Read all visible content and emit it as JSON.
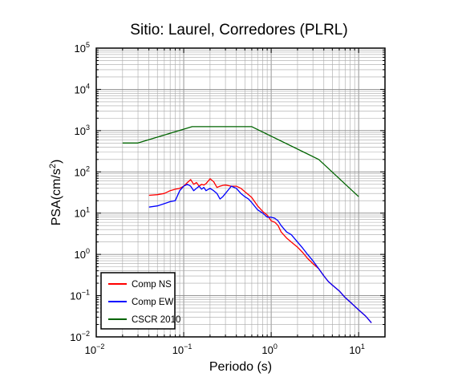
{
  "chart_data": {
    "type": "line",
    "title": "Sitio: Laurel, Corredores (PLRL)",
    "xlabel": "Periodo (s)",
    "ylabel": {
      "base": "PSA(cm/s",
      "sup": "2",
      "end": ")"
    },
    "x_scale": "log",
    "y_scale": "log",
    "xlim": [
      0.01,
      20
    ],
    "ylim": [
      0.01,
      100000
    ],
    "grid": true,
    "legend_position": "bottom-left",
    "x_ticks": [
      {
        "base": "10",
        "exp": "−2",
        "value": 0.01
      },
      {
        "base": "10",
        "exp": "−1",
        "value": 0.1
      },
      {
        "base": "10",
        "exp": "0",
        "value": 1
      },
      {
        "base": "10",
        "exp": "1",
        "value": 10
      }
    ],
    "y_ticks": [
      {
        "base": "10",
        "exp": "−2",
        "value": 0.01
      },
      {
        "base": "10",
        "exp": "−1",
        "value": 0.1
      },
      {
        "base": "10",
        "exp": "0",
        "value": 1
      },
      {
        "base": "10",
        "exp": "1",
        "value": 10
      },
      {
        "base": "10",
        "exp": "2",
        "value": 100
      },
      {
        "base": "10",
        "exp": "3",
        "value": 1000
      },
      {
        "base": "10",
        "exp": "4",
        "value": 10000
      },
      {
        "base": "10",
        "exp": "5",
        "value": 100000
      }
    ],
    "series": [
      {
        "name": "Comp NS",
        "color": "#ff0000",
        "x": [
          0.04,
          0.05,
          0.06,
          0.07,
          0.08,
          0.09,
          0.1,
          0.11,
          0.12,
          0.13,
          0.14,
          0.15,
          0.16,
          0.17,
          0.18,
          0.2,
          0.22,
          0.24,
          0.26,
          0.28,
          0.3,
          0.35,
          0.4,
          0.45,
          0.5,
          0.55,
          0.6,
          0.7,
          0.8,
          0.9,
          1.0,
          1.1,
          1.2,
          1.3,
          1.5,
          1.7,
          2.0,
          2.3,
          2.6,
          3.0,
          3.5,
          4.0,
          4.5,
          5.0,
          6.0,
          7.0,
          8.0,
          10.0,
          12.0,
          14.0
        ],
        "y": [
          27,
          28,
          30,
          35,
          38,
          40,
          45,
          55,
          65,
          50,
          55,
          45,
          50,
          48,
          52,
          68,
          58,
          42,
          45,
          47,
          48,
          45,
          45,
          40,
          33,
          28,
          24,
          15,
          11,
          9,
          6.5,
          6,
          5,
          3.5,
          2.5,
          2,
          1.5,
          1.1,
          0.8,
          0.6,
          0.45,
          0.3,
          0.22,
          0.18,
          0.13,
          0.09,
          0.07,
          0.045,
          0.032,
          0.022
        ]
      },
      {
        "name": "Comp EW",
        "color": "#0000ff",
        "x": [
          0.04,
          0.05,
          0.06,
          0.07,
          0.08,
          0.09,
          0.1,
          0.11,
          0.12,
          0.13,
          0.14,
          0.15,
          0.16,
          0.17,
          0.18,
          0.2,
          0.22,
          0.24,
          0.26,
          0.28,
          0.3,
          0.35,
          0.4,
          0.45,
          0.5,
          0.55,
          0.6,
          0.7,
          0.8,
          0.9,
          1.0,
          1.1,
          1.2,
          1.3,
          1.5,
          1.7,
          2.0,
          2.3,
          2.6,
          3.0,
          3.5,
          4.0,
          4.5,
          5.0,
          6.0,
          7.0,
          8.0,
          10.0,
          12.0,
          14.0
        ],
        "y": [
          14,
          15,
          17,
          19,
          20,
          35,
          45,
          50,
          45,
          35,
          40,
          45,
          38,
          42,
          35,
          40,
          35,
          30,
          22,
          25,
          30,
          45,
          40,
          30,
          25,
          22,
          18,
          12,
          10,
          8,
          8,
          7.5,
          6.5,
          5,
          3.5,
          3,
          2,
          1.4,
          1,
          0.7,
          0.45,
          0.3,
          0.22,
          0.18,
          0.13,
          0.09,
          0.07,
          0.045,
          0.032,
          0.022
        ]
      },
      {
        "name": "CSCR 2010",
        "color": "#006400",
        "x": [
          0.02,
          0.03,
          0.125,
          0.5,
          0.6,
          3.5,
          10
        ],
        "y": [
          500,
          500,
          1250,
          1250,
          1250,
          200,
          25
        ]
      }
    ]
  }
}
